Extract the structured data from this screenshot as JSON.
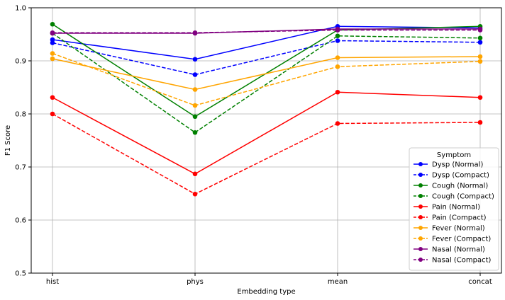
{
  "chart_data": {
    "type": "line",
    "title": "",
    "xlabel": "Embedding type",
    "ylabel": "F1 Score",
    "categories": [
      "hist",
      "phys",
      "mean",
      "concat"
    ],
    "ylim": [
      0.5,
      1.0
    ],
    "yticks": [
      "0.5",
      "0.6",
      "0.7",
      "0.8",
      "0.9",
      "1.0"
    ],
    "grid": true,
    "legend": {
      "title": "Symptom",
      "placement": "lower-right"
    },
    "series": [
      {
        "name": "Dysp (Normal)",
        "color": "#0000ff",
        "style": "solid",
        "values": [
          0.94,
          0.903,
          0.965,
          0.962
        ]
      },
      {
        "name": "Dysp (Compact)",
        "color": "#0000ff",
        "style": "dashed",
        "values": [
          0.934,
          0.874,
          0.938,
          0.935
        ]
      },
      {
        "name": "Cough (Normal)",
        "color": "#008000",
        "style": "solid",
        "values": [
          0.969,
          0.795,
          0.958,
          0.965
        ]
      },
      {
        "name": "Cough (Compact)",
        "color": "#008000",
        "style": "dashed",
        "values": [
          0.952,
          0.765,
          0.947,
          0.943
        ]
      },
      {
        "name": "Pain (Normal)",
        "color": "#ff0000",
        "style": "solid",
        "values": [
          0.831,
          0.687,
          0.841,
          0.831
        ]
      },
      {
        "name": "Pain (Compact)",
        "color": "#ff0000",
        "style": "dashed",
        "values": [
          0.8,
          0.649,
          0.782,
          0.784
        ]
      },
      {
        "name": "Fever (Normal)",
        "color": "#ffa500",
        "style": "solid",
        "values": [
          0.904,
          0.846,
          0.906,
          0.908
        ]
      },
      {
        "name": "Fever (Compact)",
        "color": "#ffa500",
        "style": "dashed",
        "values": [
          0.914,
          0.816,
          0.889,
          0.899
        ]
      },
      {
        "name": "Nasal (Normal)",
        "color": "#800080",
        "style": "solid",
        "values": [
          0.952,
          0.952,
          0.96,
          0.96
        ]
      },
      {
        "name": "Nasal (Compact)",
        "color": "#800080",
        "style": "dashed",
        "values": [
          0.953,
          0.953,
          0.958,
          0.958
        ]
      }
    ]
  }
}
